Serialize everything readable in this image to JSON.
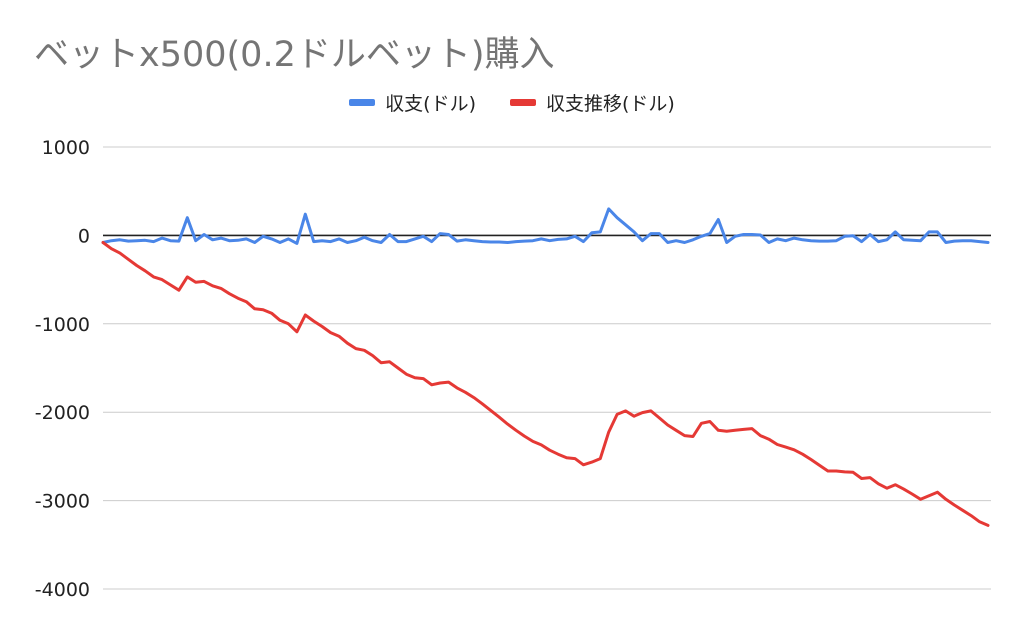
{
  "chart_data": {
    "type": "line",
    "title": "ベットx500(0.2ドルベット)購入",
    "ylim": [
      -4000,
      1000
    ],
    "yticks": [
      1000,
      0,
      -1000,
      -2000,
      -3000,
      -4000
    ],
    "grid": true,
    "legend_position": "top-center",
    "series": [
      {
        "name": "収支(ドル)",
        "color": "#4a86e8",
        "values": [
          -80,
          -60,
          -50,
          -65,
          -60,
          -55,
          -70,
          -30,
          -60,
          -65,
          200,
          -60,
          10,
          -50,
          -30,
          -60,
          -55,
          -40,
          -80,
          -10,
          -40,
          -80,
          -40,
          -90,
          240,
          -70,
          -60,
          -70,
          -40,
          -80,
          -60,
          -20,
          -60,
          -80,
          10,
          -70,
          -70,
          -40,
          -10,
          -70,
          20,
          10,
          -65,
          -50,
          -60,
          -70,
          -75,
          -75,
          -80,
          -70,
          -65,
          -60,
          -40,
          -60,
          -45,
          -40,
          -10,
          -70,
          30,
          40,
          300,
          200,
          120,
          40,
          -60,
          20,
          20,
          -80,
          -60,
          -80,
          -50,
          -10,
          20,
          180,
          -80,
          -10,
          10,
          10,
          5,
          -80,
          -40,
          -60,
          -30,
          -50,
          -60,
          -65,
          -65,
          -60,
          -10,
          -5,
          -70,
          10,
          -70,
          -50,
          40,
          -50,
          -55,
          -60,
          40,
          40,
          -80,
          -65,
          -60,
          -60,
          -70,
          -80
        ]
      },
      {
        "name": "収支推移(ドル)",
        "color": "#e53935",
        "values": [
          -80,
          -150,
          -200,
          -270,
          -340,
          -400,
          -470,
          -500,
          -560,
          -620,
          -470,
          -530,
          -520,
          -570,
          -600,
          -660,
          -710,
          -750,
          -830,
          -840,
          -880,
          -960,
          -1000,
          -1090,
          -900,
          -970,
          -1030,
          -1100,
          -1140,
          -1220,
          -1280,
          -1300,
          -1360,
          -1440,
          -1430,
          -1500,
          -1570,
          -1610,
          -1620,
          -1690,
          -1670,
          -1660,
          -1725,
          -1775,
          -1835,
          -1905,
          -1980,
          -2055,
          -2135,
          -2205,
          -2270,
          -2330,
          -2370,
          -2430,
          -2475,
          -2515,
          -2525,
          -2595,
          -2565,
          -2525,
          -2225,
          -2025,
          -1985,
          -2045,
          -2005,
          -1985,
          -2065,
          -2145,
          -2205,
          -2265,
          -2275,
          -2125,
          -2105,
          -2205,
          -2215,
          -2205,
          -2195,
          -2185,
          -2265,
          -2305,
          -2365,
          -2395,
          -2425,
          -2475,
          -2535,
          -2600,
          -2665,
          -2665,
          -2675,
          -2680,
          -2750,
          -2740,
          -2810,
          -2860,
          -2820,
          -2870,
          -2925,
          -2985,
          -2945,
          -2905,
          -2985,
          -3050,
          -3110,
          -3170,
          -3240,
          -3280
        ]
      }
    ]
  }
}
